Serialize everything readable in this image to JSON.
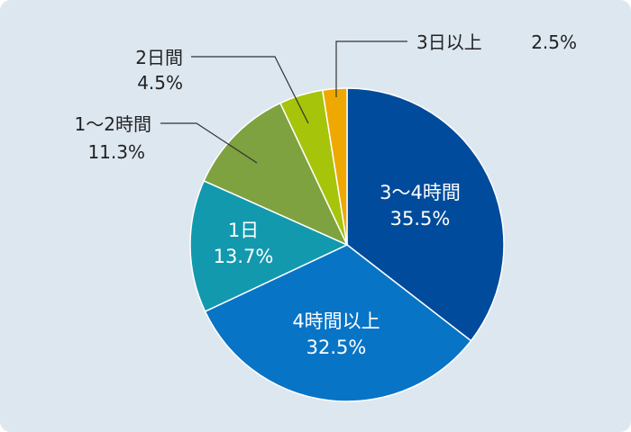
{
  "chart_data": {
    "type": "pie",
    "start": "12 o'clock",
    "direction": "clockwise",
    "slices": [
      {
        "label": "3～4時間",
        "value_label": "35.5%",
        "value": 35.5,
        "color": "#004b9c"
      },
      {
        "label": "4時間以上",
        "value_label": "32.5%",
        "value": 32.5,
        "color": "#0874c6"
      },
      {
        "label": "1日",
        "value_label": "13.7%",
        "value": 13.7,
        "color": "#1399ae"
      },
      {
        "label": "1～2時間",
        "value_label": "11.3%",
        "value": 11.3,
        "color": "#7ea23f"
      },
      {
        "label": "2日間",
        "value_label": "4.5%",
        "value": 4.5,
        "color": "#a6c40a"
      },
      {
        "label": "3日以上",
        "value_label": "2.5%",
        "value": 2.5,
        "color": "#efa800"
      }
    ]
  }
}
